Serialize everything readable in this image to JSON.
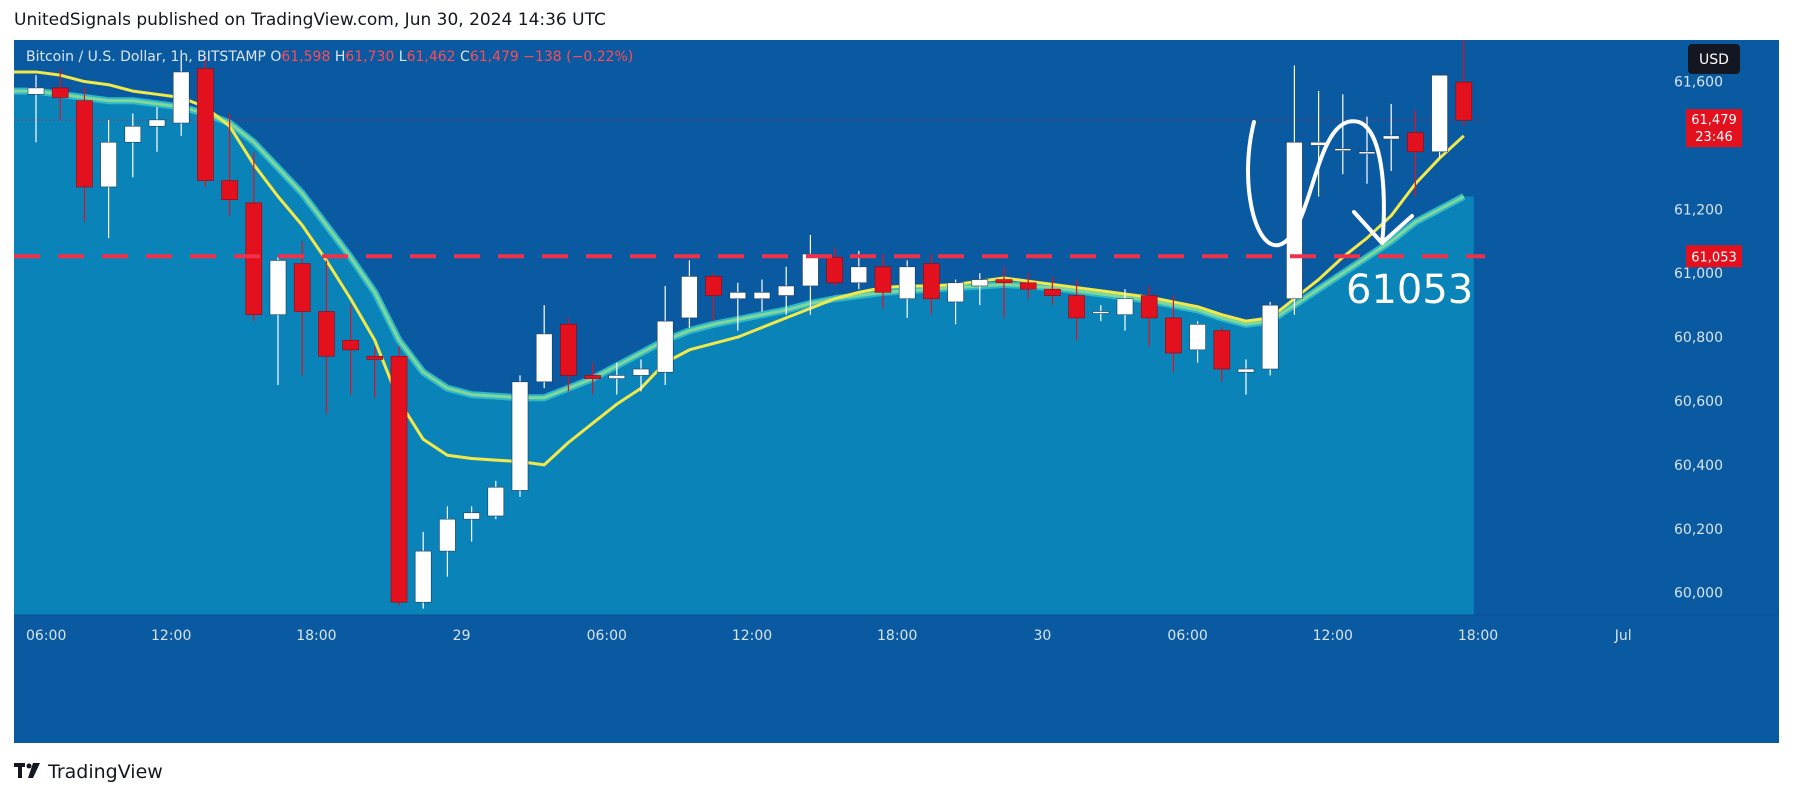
{
  "header": {
    "caption": "UnitedSignals published on TradingView.com, Jun 30, 2024 14:36 UTC"
  },
  "footer": {
    "brand": "TradingView",
    "logo_icon": "tradingview-logo-icon"
  },
  "colors": {
    "background": "#0a5aa2",
    "area": "#0a84b8",
    "up_candle": "#ffffff",
    "down_candle": "#e3101e",
    "ema_fast": "#f1e84a",
    "ema_slow": "#7fd79a",
    "level_line": "#f0314a",
    "label_bg": "#e3101e"
  },
  "chart_data": {
    "type": "candlestick",
    "symbol_line": {
      "symbol": "Bitcoin / U.S. Dollar, 1h, BITSTAMP",
      "o_label": "O",
      "o_value": "61,598",
      "h_label": "H",
      "h_value": "61,730",
      "l_label": "L",
      "l_value": "61,462",
      "c_label": "C",
      "c_value": "61,479",
      "change": "−138 (−0.22%)"
    },
    "currency": "USD",
    "y_ticks": [
      "61,600",
      "61,200",
      "61,000",
      "60,800",
      "60,600",
      "60,400",
      "60,200",
      "60,000"
    ],
    "y_tick_values": [
      61600,
      61200,
      61000,
      60800,
      60600,
      60400,
      60200,
      60000
    ],
    "ylim": [
      59930,
      61730
    ],
    "x_ticks": [
      "06:00",
      "12:00",
      "18:00",
      "29",
      "06:00",
      "12:00",
      "18:00",
      "30",
      "06:00",
      "12:00",
      "18:00",
      "Jul"
    ],
    "x_tick_index": [
      0,
      6,
      12,
      18,
      24,
      30,
      36,
      42,
      48,
      54,
      60,
      66
    ],
    "current_price": {
      "label": "61,479",
      "value": 61479,
      "countdown": "23:46"
    },
    "level": {
      "label": "61,053",
      "value": 61053
    },
    "annotation_text": "61053",
    "candles": [
      [
        61560,
        61620,
        61410,
        61580
      ],
      [
        61580,
        61640,
        61480,
        61550
      ],
      [
        61540,
        61580,
        61160,
        61270
      ],
      [
        61270,
        61480,
        61110,
        61410
      ],
      [
        61410,
        61500,
        61300,
        61460
      ],
      [
        61460,
        61520,
        61380,
        61480
      ],
      [
        61470,
        61680,
        61430,
        61630
      ],
      [
        61640,
        61680,
        61270,
        61290
      ],
      [
        61290,
        61500,
        61180,
        61230
      ],
      [
        61220,
        61380,
        60850,
        60870
      ],
      [
        60870,
        61050,
        60650,
        61040
      ],
      [
        61030,
        61100,
        60680,
        60880
      ],
      [
        60880,
        61040,
        60560,
        60740
      ],
      [
        60790,
        60900,
        60620,
        60760
      ],
      [
        60740,
        60770,
        60610,
        60730
      ],
      [
        60740,
        60770,
        59960,
        59970
      ],
      [
        59970,
        60190,
        59950,
        60130
      ],
      [
        60130,
        60270,
        60050,
        60230
      ],
      [
        60230,
        60270,
        60160,
        60250
      ],
      [
        60240,
        60350,
        60230,
        60330
      ],
      [
        60320,
        60680,
        60300,
        60660
      ],
      [
        60660,
        60900,
        60640,
        60810
      ],
      [
        60840,
        60860,
        60630,
        60680
      ],
      [
        60680,
        60720,
        60620,
        60670
      ],
      [
        60670,
        60720,
        60620,
        60680
      ],
      [
        60680,
        60730,
        60630,
        60700
      ],
      [
        60690,
        60960,
        60650,
        60850
      ],
      [
        60860,
        61040,
        60830,
        60990
      ],
      [
        60990,
        61000,
        60850,
        60930
      ],
      [
        60920,
        60970,
        60820,
        60940
      ],
      [
        60920,
        60980,
        60880,
        60940
      ],
      [
        60930,
        61020,
        60870,
        60960
      ],
      [
        60960,
        61120,
        60870,
        61060
      ],
      [
        61050,
        61080,
        60960,
        60970
      ],
      [
        60970,
        61070,
        60950,
        61020
      ],
      [
        61020,
        61060,
        60890,
        60940
      ],
      [
        60920,
        61040,
        60860,
        61020
      ],
      [
        61030,
        61060,
        60870,
        60920
      ],
      [
        60910,
        60980,
        60840,
        60970
      ],
      [
        60960,
        61000,
        60900,
        60980
      ],
      [
        60980,
        61020,
        60860,
        60970
      ],
      [
        60970,
        61000,
        60920,
        60950
      ],
      [
        60950,
        60990,
        60900,
        60930
      ],
      [
        60930,
        60980,
        60790,
        60860
      ],
      [
        60880,
        60900,
        60850,
        60880
      ],
      [
        60870,
        60950,
        60820,
        60920
      ],
      [
        60930,
        60960,
        60770,
        60860
      ],
      [
        60860,
        60930,
        60690,
        60750
      ],
      [
        60760,
        60850,
        60720,
        60840
      ],
      [
        60820,
        60830,
        60660,
        60700
      ],
      [
        60690,
        60730,
        60620,
        60700
      ],
      [
        60700,
        60910,
        60680,
        60900
      ],
      [
        60920,
        61650,
        60870,
        61410
      ],
      [
        61400,
        61570,
        61240,
        61410
      ],
      [
        61390,
        61560,
        61310,
        61390
      ],
      [
        61380,
        61490,
        61280,
        61380
      ],
      [
        61420,
        61530,
        61320,
        61430
      ],
      [
        61440,
        61510,
        61240,
        61380
      ],
      [
        61380,
        61620,
        61360,
        61620
      ],
      [
        61598,
        61730,
        61462,
        61479
      ]
    ],
    "ema_fast": [
      61630,
      61620,
      61600,
      61590,
      61570,
      61560,
      61550,
      61520,
      61460,
      61340,
      61240,
      61150,
      61040,
      60920,
      60790,
      60600,
      60480,
      60430,
      60420,
      60415,
      60410,
      60400,
      60470,
      60530,
      60590,
      60640,
      60720,
      60760,
      60780,
      60800,
      60830,
      60860,
      60890,
      60920,
      60940,
      60955,
      60960,
      60960,
      60965,
      60975,
      60985,
      60975,
      60965,
      60955,
      60945,
      60935,
      60925,
      60910,
      60895,
      60870,
      60850,
      60860,
      60920,
      60980,
      61050,
      61110,
      61180,
      61280,
      61360,
      61430
    ],
    "ema_slow": [
      61570,
      61560,
      61550,
      61540,
      61540,
      61530,
      61520,
      61500,
      61470,
      61410,
      61330,
      61250,
      61150,
      61050,
      60940,
      60790,
      60690,
      60640,
      60620,
      60615,
      60610,
      60610,
      60640,
      60670,
      60710,
      60750,
      60790,
      60820,
      60840,
      60855,
      60870,
      60885,
      60905,
      60920,
      60930,
      60940,
      60945,
      60950,
      60955,
      60960,
      60965,
      60960,
      60955,
      60945,
      60935,
      60925,
      60915,
      60900,
      60885,
      60860,
      60840,
      60850,
      60900,
      60950,
      61000,
      61050,
      61100,
      61160,
      61200,
      61240
    ]
  }
}
